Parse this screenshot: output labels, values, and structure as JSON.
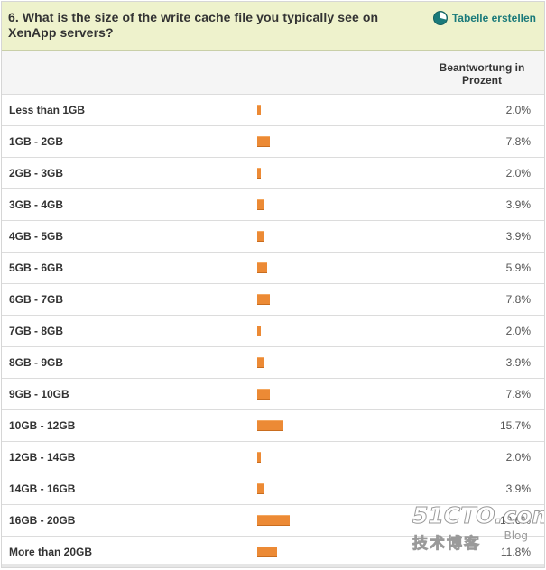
{
  "question": {
    "title": "6. What is the size of the write cache file you typically see on XenApp servers?"
  },
  "actions": {
    "create_table_label": "Tabelle erstellen",
    "create_table_icon": "pie-chart-icon",
    "accent_color": "#1a7a7a"
  },
  "table_header": {
    "response_percent_label": "Beantwortung in Prozent"
  },
  "bar_color": "#ec8a35",
  "chart_data": {
    "type": "bar",
    "orientation": "horizontal",
    "categories": [
      "Less than 1GB",
      "1GB - 2GB",
      "2GB - 3GB",
      "3GB - 4GB",
      "4GB - 5GB",
      "5GB - 6GB",
      "6GB - 7GB",
      "7GB - 8GB",
      "8GB - 9GB",
      "9GB - 10GB",
      "10GB - 12GB",
      "12GB - 14GB",
      "14GB - 16GB",
      "16GB - 20GB",
      "More than 20GB"
    ],
    "values": [
      2.0,
      7.8,
      2.0,
      3.9,
      3.9,
      5.9,
      7.8,
      2.0,
      3.9,
      7.8,
      15.7,
      2.0,
      3.9,
      19.6,
      11.8
    ],
    "value_labels": [
      "2.0%",
      "7.8%",
      "2.0%",
      "3.9%",
      "3.9%",
      "5.9%",
      "7.8%",
      "2.0%",
      "3.9%",
      "7.8%",
      "15.7%",
      "2.0%",
      "3.9%",
      "19.6%",
      "11.8%"
    ],
    "title": "6. What is the size of the write cache file you typically see on XenApp servers?",
    "xlabel": "",
    "ylabel": "Beantwortung in Prozent",
    "xlim": [
      0,
      100
    ],
    "grid": false,
    "legend": "none"
  },
  "watermark": {
    "site": "51CTO.com",
    "chinese": "技术博客",
    "blog": "Blog"
  }
}
